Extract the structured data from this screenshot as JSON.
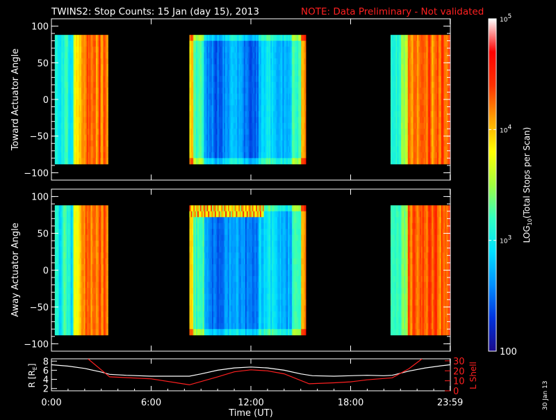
{
  "title": {
    "main": "TWINS2: Stop Counts: 15 Jan (day  15), 2013",
    "note": "NOTE: Data Preliminary - Not validated",
    "note_color": "#ff2020"
  },
  "stamp": "30 Jan 13",
  "chart_data": [
    {
      "type": "heatmap",
      "name": "toward",
      "ylabel": "Toward Actuator Angle",
      "xlabel": "",
      "xlim": [
        0,
        24
      ],
      "ylim": [
        -110,
        110
      ],
      "yticks": [
        -100,
        -50,
        0,
        50,
        100
      ],
      "data_angle_range": [
        -88,
        88
      ],
      "data_intervals_hours": [
        [
          0.2,
          3.4
        ],
        [
          8.3,
          15.3
        ],
        [
          20.4,
          24
        ]
      ],
      "color_scale": "log",
      "background": "#000000"
    },
    {
      "type": "heatmap",
      "name": "away",
      "ylabel": "Away Actuator Angle",
      "xlabel": "",
      "xlim": [
        0,
        24
      ],
      "ylim": [
        -110,
        110
      ],
      "yticks": [
        -100,
        -50,
        0,
        50,
        100
      ],
      "data_angle_range": [
        -88,
        88
      ],
      "data_intervals_hours": [
        [
          0.2,
          3.4
        ],
        [
          8.3,
          15.3
        ],
        [
          20.4,
          24
        ]
      ],
      "color_scale": "log",
      "background": "#000000"
    },
    {
      "type": "line",
      "name": "orbit",
      "xlabel": "Time (UT)",
      "ylabel_left": "R [RE]",
      "ylabel_right": "L Shell",
      "xlim": [
        0,
        24
      ],
      "ylim_left": [
        1.5,
        8.5
      ],
      "ylim_right": [
        0,
        32
      ],
      "yticks_left": [
        "2",
        "4",
        "6",
        "8"
      ],
      "yticks_right": [
        "0",
        "10",
        "20",
        "30"
      ],
      "xticks": [
        0,
        6,
        12,
        18,
        23.983
      ],
      "xticklabels": [
        "0:00",
        "6:00",
        "12:00",
        "18:00",
        "23:59"
      ],
      "series": [
        {
          "name": "R",
          "axis": "left",
          "color": "#ffffff",
          "x": [
            0,
            1,
            2,
            3,
            3.5,
            4.5,
            6,
            8.3,
            9,
            10,
            11,
            12,
            13,
            14,
            15,
            15.7,
            17,
            18,
            19,
            20,
            20.5,
            21.5,
            22.5,
            23.5,
            24
          ],
          "y": [
            7.2,
            6.9,
            6.4,
            5.6,
            5.1,
            4.9,
            4.7,
            4.7,
            5.2,
            6.0,
            6.5,
            6.7,
            6.5,
            6.0,
            5.2,
            4.8,
            4.7,
            4.8,
            4.9,
            4.8,
            4.9,
            5.8,
            6.5,
            7.0,
            7.2
          ]
        },
        {
          "name": "L Shell",
          "axis": "right",
          "color": "#ff2020",
          "x": [
            2.2,
            3.5,
            6,
            8.3,
            10,
            11,
            12,
            13,
            14,
            15.5,
            17,
            18,
            19,
            20.5,
            21.5,
            22.3
          ],
          "y": [
            32,
            14,
            12,
            6,
            14,
            19,
            21,
            20,
            17,
            7,
            8,
            9,
            11,
            13,
            22,
            32
          ]
        }
      ]
    }
  ],
  "colorbar": {
    "label": "LOG10(Total Stops per Scan)",
    "label_parts": {
      "pre": "LOG",
      "sub": "10",
      "post": "(Total Stops per Scan)"
    },
    "scale": "log",
    "range": [
      100,
      100000
    ],
    "ticks": [
      {
        "value": 100,
        "label": "100"
      },
      {
        "value": 1000,
        "base": "10",
        "exp": "3"
      },
      {
        "value": 10000,
        "base": "10",
        "exp": "4"
      },
      {
        "value": 100000,
        "base": "10",
        "exp": "5"
      }
    ],
    "colors": [
      "#1a0a8c",
      "#0033dd",
      "#0090ff",
      "#00e0ff",
      "#30ffc0",
      "#a0ff40",
      "#ffff00",
      "#ffa000",
      "#ff3000",
      "#ff0000",
      "#ffffff"
    ]
  },
  "orbit_labels": {
    "r_pre": "R [R",
    "r_sub": "E",
    "r_post": "]",
    "lshell": "L Shell"
  }
}
